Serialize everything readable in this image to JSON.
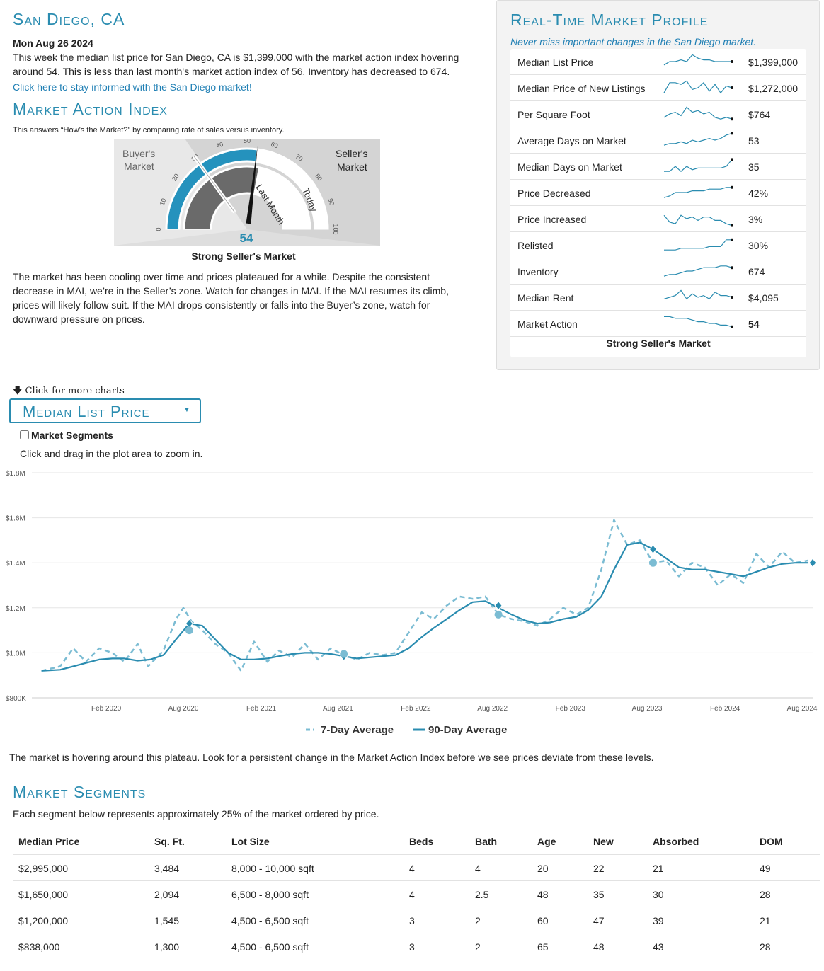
{
  "header": {
    "title": "San Diego, CA",
    "date": "Mon Aug 26 2024",
    "summary": "This week the median list price for San Diego, CA is $1,399,000 with the market action index hovering around 54. This is less than last month's market action index of 56. Inventory has decreased to 674.",
    "cta_link": "Click here to stay informed with the San Diego market!"
  },
  "mai": {
    "title": "Market Action Index",
    "subtitle": "This answers “How’s the Market?” by comparing rate of sales versus inventory.",
    "buyers_label_1": "Buyer's",
    "buyers_label_2": "Market",
    "sellers_label_1": "Seller's",
    "sellers_label_2": "Market",
    "last_month_label": "Last Month",
    "today_label": "Today",
    "value": 54,
    "value_text": "54",
    "last_month_value": 56,
    "ticks": [
      "0",
      "10",
      "20",
      "30",
      "40",
      "50",
      "60",
      "70",
      "80",
      "90",
      "100"
    ],
    "caption": "Strong Seller's Market",
    "paragraph": "The market has been cooling over time and prices plateaued for a while. Despite the consistent decrease in MAI, we’re in the Seller’s zone. Watch for changes in MAI. If the MAI resumes its climb, prices will likely follow suit. If the MAI drops consistently or falls into the Buyer’s zone, watch for downward pressure on prices."
  },
  "profile": {
    "title": "Real-Time Market Profile",
    "subtitle": "Never miss important changes in the San Diego market.",
    "rows": [
      {
        "label": "Median List Price",
        "value": "$1,399,000",
        "bold": false,
        "spark": [
          3,
          5,
          5,
          6,
          5,
          9,
          7,
          6,
          6,
          5,
          5,
          5,
          5
        ]
      },
      {
        "label": "Median Price of New Listings",
        "value": "$1,272,000",
        "bold": false,
        "spark": [
          2,
          8,
          8,
          7,
          9,
          4,
          5,
          8,
          3,
          7,
          2,
          6,
          5
        ]
      },
      {
        "label": "Per Square Foot",
        "value": "$764",
        "bold": false,
        "spark": [
          3,
          5,
          6,
          4,
          9,
          6,
          7,
          5,
          6,
          3,
          2,
          3,
          2
        ]
      },
      {
        "label": "Average Days on Market",
        "value": "53",
        "bold": false,
        "spark": [
          2,
          3,
          3,
          4,
          3,
          5,
          4,
          5,
          6,
          5,
          6,
          8,
          9
        ]
      },
      {
        "label": "Median Days on Market",
        "value": "35",
        "bold": false,
        "spark": [
          2,
          2,
          5,
          2,
          5,
          3,
          4,
          4,
          4,
          4,
          4,
          5,
          9
        ]
      },
      {
        "label": "Price Decreased",
        "value": "42%",
        "bold": false,
        "spark": [
          2,
          3,
          5,
          5,
          5,
          6,
          6,
          6,
          7,
          7,
          7,
          8,
          8
        ]
      },
      {
        "label": "Price Increased",
        "value": "3%",
        "bold": false,
        "spark": [
          7,
          3,
          2,
          7,
          5,
          6,
          4,
          6,
          6,
          4,
          4,
          2,
          1
        ]
      },
      {
        "label": "Relisted",
        "value": "30%",
        "bold": false,
        "spark": [
          2,
          2,
          2,
          3,
          3,
          3,
          3,
          3,
          4,
          4,
          4,
          8,
          8
        ]
      },
      {
        "label": "Inventory",
        "value": "674",
        "bold": false,
        "spark": [
          2,
          3,
          3,
          4,
          5,
          5,
          6,
          7,
          7,
          7,
          8,
          8,
          7
        ]
      },
      {
        "label": "Median Rent",
        "value": "$4,095",
        "bold": false,
        "spark": [
          4,
          5,
          6,
          9,
          4,
          7,
          5,
          6,
          4,
          8,
          6,
          6,
          5
        ]
      },
      {
        "label": "Market Action",
        "value": "54",
        "bold": true,
        "spark": [
          9,
          9,
          8,
          8,
          8,
          7,
          6,
          6,
          5,
          5,
          4,
          4,
          3
        ]
      }
    ],
    "footer": "Strong Seller's Market"
  },
  "charts_section": {
    "more_charts": "Click for more charts",
    "dropdown_label": "Median List Price",
    "checkbox_label": "Market Segments",
    "checkbox_checked": false,
    "zoom_hint": "Click and drag in the plot area to zoom in.",
    "plateau_note": "The market is hovering around this plateau. Look for a persistent change in the Market Action Index before we see prices deviate from these levels."
  },
  "chart_data": {
    "type": "line",
    "ylim": [
      800000,
      1800000
    ],
    "y_ticks": [
      800000,
      1000000,
      1200000,
      1400000,
      1600000,
      1800000
    ],
    "y_tick_labels": [
      "$800K",
      "$1.0M",
      "$1.2M",
      "$1.4M",
      "$1.6M",
      "$1.8M"
    ],
    "x_ticks": [
      "2020-02-01",
      "2020-08-01",
      "2021-02-01",
      "2021-08-01",
      "2022-02-01",
      "2022-08-01",
      "2023-02-01",
      "2023-08-01",
      "2024-02-01",
      "2024-08-01"
    ],
    "x_tick_labels": [
      "Feb 2020",
      "Aug 2020",
      "Feb 2021",
      "Aug 2021",
      "Feb 2022",
      "Aug 2022",
      "Feb 2023",
      "Aug 2023",
      "Feb 2024",
      "Aug 2024"
    ],
    "xlim": [
      "2019-08-26",
      "2024-08-26"
    ],
    "legend": "bottom-center",
    "grid": true,
    "series": [
      {
        "name": "7-Day Average",
        "style": "dashed",
        "color": "#7bbcd3",
        "points": [
          [
            "2019-09-01",
            920000
          ],
          [
            "2019-10-15",
            940000
          ],
          [
            "2019-11-15",
            1020000
          ],
          [
            "2019-12-15",
            960000
          ],
          [
            "2020-01-15",
            1020000
          ],
          [
            "2020-02-15",
            1000000
          ],
          [
            "2020-03-15",
            960000
          ],
          [
            "2020-04-15",
            1040000
          ],
          [
            "2020-05-10",
            940000
          ],
          [
            "2020-06-15",
            1010000
          ],
          [
            "2020-07-15",
            1150000
          ],
          [
            "2020-08-01",
            1200000
          ],
          [
            "2020-08-20",
            1140000
          ],
          [
            "2020-09-15",
            1100000
          ],
          [
            "2020-10-15",
            1040000
          ],
          [
            "2020-11-15",
            1000000
          ],
          [
            "2020-12-15",
            920000
          ],
          [
            "2021-01-15",
            1050000
          ],
          [
            "2021-02-15",
            960000
          ],
          [
            "2021-03-15",
            1010000
          ],
          [
            "2021-04-15",
            980000
          ],
          [
            "2021-05-15",
            1040000
          ],
          [
            "2021-06-15",
            970000
          ],
          [
            "2021-07-15",
            1020000
          ],
          [
            "2021-08-15",
            990000
          ],
          [
            "2021-09-15",
            970000
          ],
          [
            "2021-10-15",
            1000000
          ],
          [
            "2021-11-15",
            990000
          ],
          [
            "2021-12-15",
            1000000
          ],
          [
            "2022-01-15",
            1090000
          ],
          [
            "2022-02-15",
            1180000
          ],
          [
            "2022-03-15",
            1150000
          ],
          [
            "2022-04-15",
            1210000
          ],
          [
            "2022-05-15",
            1250000
          ],
          [
            "2022-06-15",
            1240000
          ],
          [
            "2022-07-15",
            1250000
          ],
          [
            "2022-08-15",
            1170000
          ],
          [
            "2022-09-15",
            1150000
          ],
          [
            "2022-10-15",
            1140000
          ],
          [
            "2022-11-15",
            1120000
          ],
          [
            "2022-12-15",
            1150000
          ],
          [
            "2023-01-15",
            1200000
          ],
          [
            "2023-02-15",
            1170000
          ],
          [
            "2023-03-15",
            1200000
          ],
          [
            "2023-04-15",
            1370000
          ],
          [
            "2023-05-15",
            1590000
          ],
          [
            "2023-06-15",
            1480000
          ],
          [
            "2023-07-15",
            1500000
          ],
          [
            "2023-08-15",
            1400000
          ],
          [
            "2023-09-15",
            1410000
          ],
          [
            "2023-10-15",
            1340000
          ],
          [
            "2023-11-15",
            1400000
          ],
          [
            "2023-12-15",
            1380000
          ],
          [
            "2024-01-15",
            1300000
          ],
          [
            "2024-02-15",
            1350000
          ],
          [
            "2024-03-15",
            1310000
          ],
          [
            "2024-04-15",
            1440000
          ],
          [
            "2024-05-15",
            1380000
          ],
          [
            "2024-06-15",
            1450000
          ],
          [
            "2024-07-15",
            1400000
          ],
          [
            "2024-08-15",
            1410000
          ]
        ]
      },
      {
        "name": "90-Day Average",
        "style": "solid",
        "color": "#2a8cb0",
        "points": [
          [
            "2019-09-01",
            920000
          ],
          [
            "2019-10-15",
            925000
          ],
          [
            "2019-11-15",
            940000
          ],
          [
            "2019-12-15",
            955000
          ],
          [
            "2020-01-15",
            970000
          ],
          [
            "2020-02-15",
            975000
          ],
          [
            "2020-03-15",
            975000
          ],
          [
            "2020-04-15",
            965000
          ],
          [
            "2020-05-15",
            970000
          ],
          [
            "2020-06-15",
            990000
          ],
          [
            "2020-07-15",
            1060000
          ],
          [
            "2020-08-15",
            1130000
          ],
          [
            "2020-09-15",
            1120000
          ],
          [
            "2020-10-15",
            1060000
          ],
          [
            "2020-11-15",
            1000000
          ],
          [
            "2020-12-15",
            970000
          ],
          [
            "2021-01-15",
            970000
          ],
          [
            "2021-02-15",
            975000
          ],
          [
            "2021-03-15",
            985000
          ],
          [
            "2021-04-15",
            995000
          ],
          [
            "2021-05-15",
            1000000
          ],
          [
            "2021-06-15",
            1000000
          ],
          [
            "2021-07-15",
            995000
          ],
          [
            "2021-08-15",
            985000
          ],
          [
            "2021-09-15",
            975000
          ],
          [
            "2021-10-15",
            980000
          ],
          [
            "2021-11-15",
            985000
          ],
          [
            "2021-12-15",
            990000
          ],
          [
            "2022-01-15",
            1020000
          ],
          [
            "2022-02-15",
            1070000
          ],
          [
            "2022-03-15",
            1110000
          ],
          [
            "2022-04-15",
            1150000
          ],
          [
            "2022-05-15",
            1190000
          ],
          [
            "2022-06-15",
            1225000
          ],
          [
            "2022-07-15",
            1230000
          ],
          [
            "2022-08-15",
            1200000
          ],
          [
            "2022-09-15",
            1170000
          ],
          [
            "2022-10-15",
            1145000
          ],
          [
            "2022-11-15",
            1130000
          ],
          [
            "2022-12-15",
            1135000
          ],
          [
            "2023-01-15",
            1150000
          ],
          [
            "2023-02-15",
            1160000
          ],
          [
            "2023-03-15",
            1190000
          ],
          [
            "2023-04-15",
            1250000
          ],
          [
            "2023-05-15",
            1370000
          ],
          [
            "2023-06-15",
            1480000
          ],
          [
            "2023-07-15",
            1490000
          ],
          [
            "2023-08-15",
            1460000
          ],
          [
            "2023-09-15",
            1420000
          ],
          [
            "2023-10-15",
            1380000
          ],
          [
            "2023-11-15",
            1370000
          ],
          [
            "2023-12-15",
            1370000
          ],
          [
            "2024-01-15",
            1360000
          ],
          [
            "2024-02-15",
            1350000
          ],
          [
            "2024-03-15",
            1340000
          ],
          [
            "2024-04-15",
            1360000
          ],
          [
            "2024-05-15",
            1380000
          ],
          [
            "2024-06-15",
            1395000
          ],
          [
            "2024-07-15",
            1400000
          ],
          [
            "2024-08-15",
            1400000
          ]
        ]
      }
    ],
    "markers": [
      {
        "date": "2020-08-15",
        "value": 1130000,
        "kind": "diamond"
      },
      {
        "date": "2020-08-15",
        "value": 1100000,
        "kind": "circle"
      },
      {
        "date": "2021-08-15",
        "value": 985000,
        "kind": "diamond"
      },
      {
        "date": "2021-08-15",
        "value": 995000,
        "kind": "circle"
      },
      {
        "date": "2022-08-15",
        "value": 1210000,
        "kind": "diamond"
      },
      {
        "date": "2022-08-15",
        "value": 1170000,
        "kind": "circle"
      },
      {
        "date": "2023-08-15",
        "value": 1460000,
        "kind": "diamond"
      },
      {
        "date": "2023-08-15",
        "value": 1400000,
        "kind": "circle"
      },
      {
        "date": "2024-08-26",
        "value": 1400000,
        "kind": "diamond"
      }
    ]
  },
  "segments": {
    "title": "Market Segments",
    "subtitle": "Each segment below represents approximately 25% of the market ordered by price.",
    "columns": [
      "Median Price",
      "Sq. Ft.",
      "Lot Size",
      "Beds",
      "Bath",
      "Age",
      "New",
      "Absorbed",
      "DOM"
    ],
    "rows": [
      [
        "$2,995,000",
        "3,484",
        "8,000 - 10,000 sqft",
        "4",
        "4",
        "20",
        "22",
        "21",
        "49"
      ],
      [
        "$1,650,000",
        "2,094",
        "6,500 - 8,000 sqft",
        "4",
        "2.5",
        "48",
        "35",
        "30",
        "28"
      ],
      [
        "$1,200,000",
        "1,545",
        "4,500 - 6,500 sqft",
        "3",
        "2",
        "60",
        "47",
        "39",
        "21"
      ],
      [
        "$838,000",
        "1,300",
        "4,500 - 6,500 sqft",
        "3",
        "2",
        "65",
        "48",
        "43",
        "28"
      ]
    ]
  }
}
